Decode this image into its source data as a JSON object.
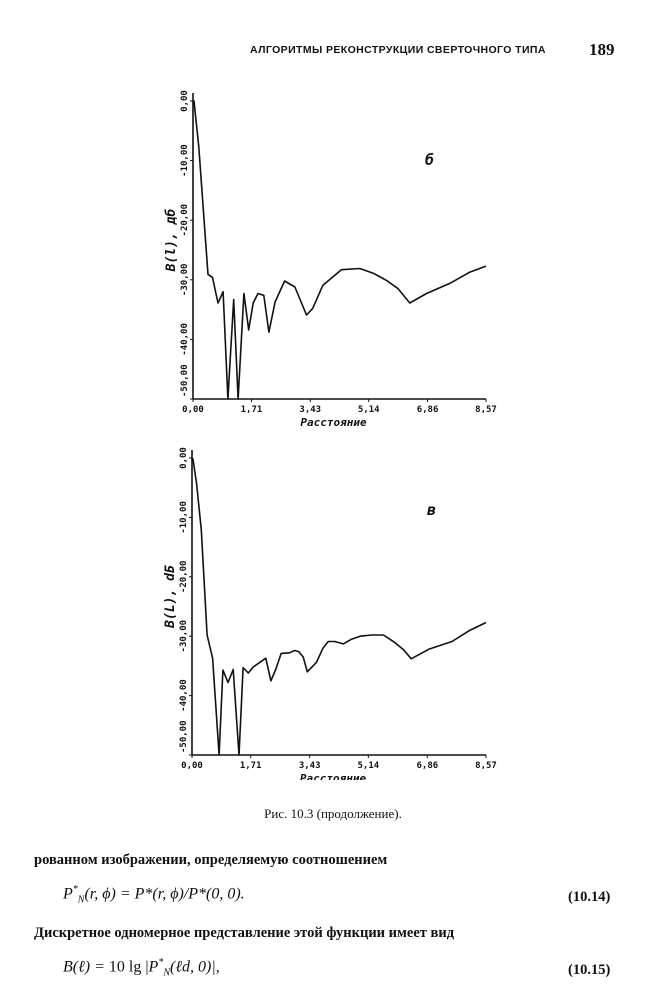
{
  "header": {
    "running_title": "АЛГОРИТМЫ РЕКОНСТРУКЦИИ СВЕРТОЧНОГО ТИПА",
    "page_number": "189"
  },
  "chart_data": [
    {
      "type": "line",
      "panel_label": "б",
      "ylabel": "B(l), дб",
      "xlabel": "Расстояние",
      "xlim": [
        0,
        8.57
      ],
      "ylim": [
        -50,
        0
      ],
      "x_ticks": [
        0,
        1.71,
        3.43,
        5.14,
        6.86,
        8.57
      ],
      "x_tick_labels": [
        "0,00",
        "1,71",
        "3,43",
        "5,14",
        "6,86",
        "8,57"
      ],
      "y_ticks": [
        0,
        -10,
        -20,
        -30,
        -40,
        -50
      ],
      "y_tick_labels": [
        "0,00",
        "-10,00",
        "-20,00",
        "-30,00",
        "-40,00",
        "-50,00"
      ],
      "grid": false,
      "x": [
        0,
        0.03,
        0.17,
        0.44,
        0.57,
        0.73,
        0.88,
        1.02,
        1.19,
        1.32,
        1.49,
        1.63,
        1.76,
        1.9,
        2.07,
        2.22,
        2.4,
        2.68,
        2.98,
        3.32,
        3.5,
        3.8,
        4.34,
        4.88,
        5.27,
        5.66,
        6.0,
        6.34,
        6.83,
        7.51,
        8.1,
        8.57
      ],
      "y": [
        0,
        0,
        -7.7,
        -29.1,
        -29.6,
        -33.9,
        -32,
        -50,
        -33.3,
        -50,
        -32.3,
        -38.4,
        -33.9,
        -32.3,
        -32.6,
        -38.8,
        -33.7,
        -30.2,
        -31.2,
        -35.9,
        -34.8,
        -30.9,
        -28.3,
        -28.1,
        -28.9,
        -30.1,
        -31.5,
        -33.9,
        -32.3,
        -30.6,
        -28.7,
        -27.7
      ]
    },
    {
      "type": "line",
      "panel_label": "в",
      "ylabel": "B(L), dБ",
      "xlabel": "Расстояние",
      "xlim": [
        0,
        8.57
      ],
      "ylim": [
        -50,
        0
      ],
      "x_ticks": [
        0,
        1.71,
        3.43,
        5.14,
        6.86,
        8.57
      ],
      "x_tick_labels": [
        "0,00",
        "1,71",
        "3,43",
        "5,14",
        "6,86",
        "8,57"
      ],
      "y_ticks": [
        0,
        -10,
        -20,
        -30,
        -40,
        -50
      ],
      "y_tick_labels": [
        "0,00",
        "-10,00",
        "-20,00",
        "-30,00",
        "-40,00",
        "-50,00"
      ],
      "grid": false,
      "x": [
        0,
        0.03,
        0.13,
        0.27,
        0.44,
        0.6,
        0.79,
        0.9,
        1.05,
        1.2,
        1.37,
        1.49,
        1.64,
        1.78,
        2.15,
        2.3,
        2.44,
        2.6,
        2.84,
        2.99,
        3.11,
        3.24,
        3.36,
        3.63,
        3.82,
        3.97,
        4.16,
        4.41,
        4.65,
        4.9,
        5.24,
        5.58,
        5.92,
        6.17,
        6.39,
        6.9,
        7.58,
        8.07,
        8.57
      ],
      "y": [
        0,
        -0.2,
        -4.2,
        -12.1,
        -29.8,
        -33.7,
        -50,
        -35.7,
        -37.8,
        -35.6,
        -50,
        -35.3,
        -36.2,
        -35.2,
        -33.7,
        -37.5,
        -35.6,
        -32.9,
        -32.8,
        -32.4,
        -32.6,
        -33.5,
        -36,
        -34.4,
        -32,
        -30.9,
        -30.9,
        -31.3,
        -30.5,
        -30,
        -29.8,
        -29.8,
        -31.1,
        -32.3,
        -33.8,
        -32.2,
        -30.9,
        -29.1,
        -27.7
      ]
    }
  ],
  "caption": "Рис. 10.3 (продолжение).",
  "body": {
    "para1": "рованном изображении, определяемую соотношением",
    "eq1": {
      "lhs_base": "P",
      "lhs_sup": "*",
      "lhs_sub": "N",
      "rest": "(r, ϕ) = P*(r, ϕ)/P*(0, 0).",
      "number": "(10.14)"
    },
    "para2": "Дискретное одномерное представление этой функции имеет вид",
    "eq2": {
      "lhs": "B(ℓ) = ",
      "num": "10 lg |",
      "p_base": "P",
      "p_sup": "*",
      "p_sub": "N",
      "rest": "(ℓd, 0)|,",
      "number": "(10.15)"
    }
  }
}
